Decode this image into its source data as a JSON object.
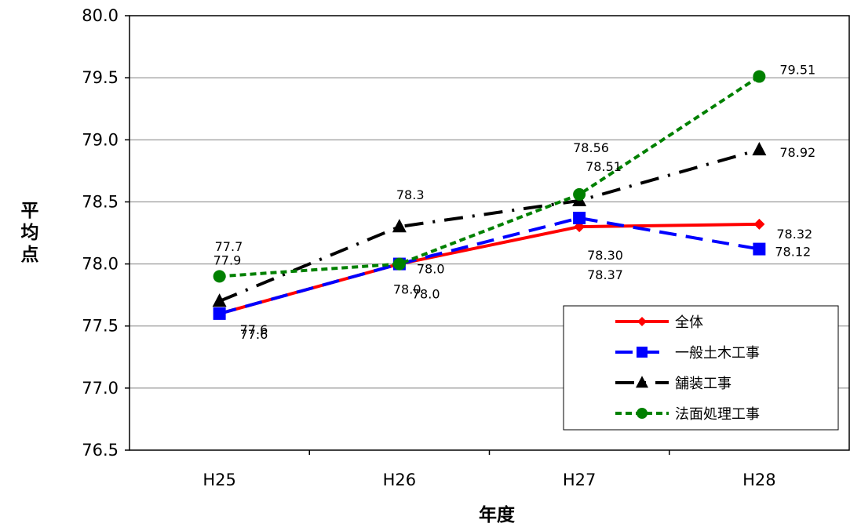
{
  "chart_data": {
    "type": "line",
    "title": "",
    "xlabel": "年度",
    "ylabel": "平均点",
    "categories": [
      "H25",
      "H26",
      "H27",
      "H28"
    ],
    "ylim": [
      76.5,
      80.0
    ],
    "yticks": [
      "76.5",
      "77.0",
      "77.5",
      "78.0",
      "78.5",
      "79.0",
      "79.5",
      "80.0"
    ],
    "grid": "horizontal",
    "legend_position": "bottom-right",
    "series": [
      {
        "name": "全体",
        "values": [
          77.6,
          78.0,
          78.3,
          78.32
        ],
        "labels": [
          "77.6",
          "78.0",
          "78.30",
          "78.32"
        ],
        "color": "#ff0000",
        "marker": "diamond",
        "dash": "solid"
      },
      {
        "name": "一般土木工事",
        "values": [
          77.6,
          78.0,
          78.37,
          78.12
        ],
        "labels": [
          "77.6",
          "78.0",
          "78.37",
          "78.12"
        ],
        "color": "#0000ff",
        "marker": "square",
        "dash": "long-dash"
      },
      {
        "name": "舗装工事",
        "values": [
          77.7,
          78.3,
          78.51,
          78.92
        ],
        "labels": [
          "77.7",
          "78.3",
          "78.51",
          "78.92"
        ],
        "color": "#000000",
        "marker": "triangle",
        "dash": "dash-dot"
      },
      {
        "name": "法面処理工事",
        "values": [
          77.9,
          78.0,
          78.56,
          79.51
        ],
        "labels": [
          "77.9",
          "78.0",
          "78.56",
          "79.51"
        ],
        "color": "#008000",
        "marker": "circle",
        "dash": "dotted"
      }
    ]
  }
}
